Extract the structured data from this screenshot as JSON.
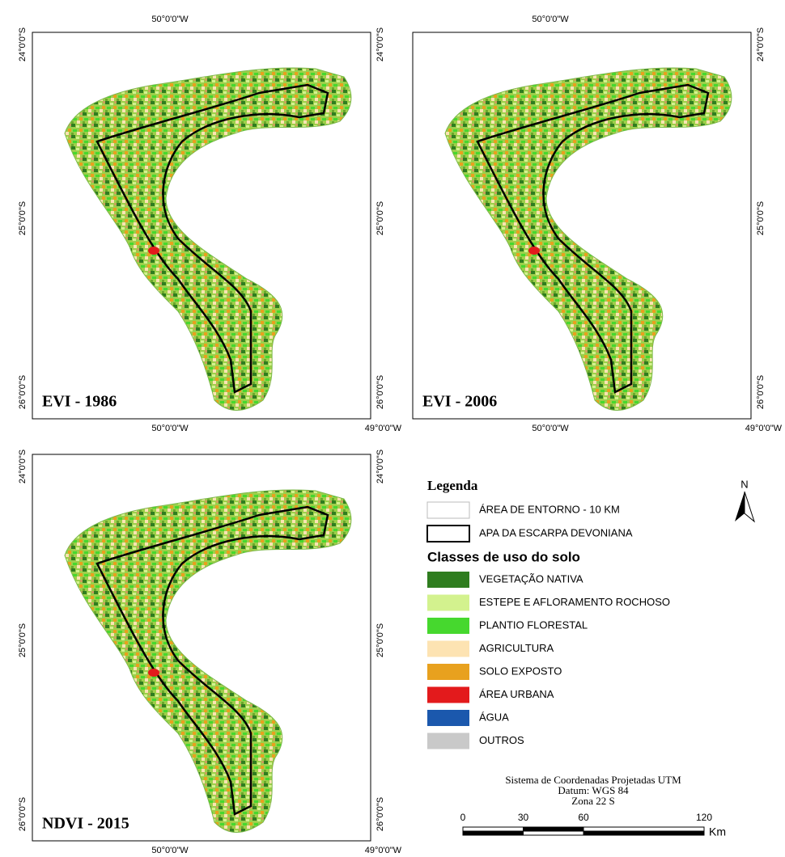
{
  "panels": [
    {
      "label": "EVI - 1986",
      "top_lon": [
        "50°0'0\"W"
      ],
      "bottom_lons": [
        "50°0'0\"W",
        "49°0'0\"W"
      ],
      "left_lats": [
        "24°0'0\"S",
        "25°0'0\"S",
        "26°0'0\"S"
      ],
      "right_lats": [
        "24°0'0\"S",
        "25°0'0\"S",
        "26°0'0\"S"
      ]
    },
    {
      "label": "EVI - 2006",
      "top_lon": [
        "50°0'0\"W"
      ],
      "bottom_lons": [
        "50°0'0\"W",
        "49°0'0\"W"
      ],
      "left_lats": [],
      "right_lats": [
        "24°0'0\"S",
        "25°0'0\"S",
        "26°0'0\"S"
      ]
    },
    {
      "label": "NDVI - 2015",
      "top_lon": [],
      "bottom_lons": [
        "50°0'0\"W",
        "49°0'0\"W"
      ],
      "left_lats": [
        "24°0'0\"S",
        "25°0'0\"S",
        "26°0'0\"S"
      ],
      "right_lats": [
        "24°0'0\"S",
        "25°0'0\"S",
        "26°0'0\"S"
      ]
    }
  ],
  "legend": {
    "title": "Legenda",
    "buffer": "ÁREA DE ENTORNO - 10 KM",
    "boundary": "APA DA ESCARPA DEVONIANA",
    "classes_title": "Classes de uso do solo",
    "classes": [
      {
        "label": "VEGETAÇÃO NATIVA",
        "color": "#2f7d1f"
      },
      {
        "label": "ESTEPE E AFLORAMENTO ROCHOSO",
        "color": "#d3f28e"
      },
      {
        "label": "PLANTIO FLORESTAL",
        "color": "#46d82e"
      },
      {
        "label": "AGRICULTURA",
        "color": "#fde3b2"
      },
      {
        "label": "SOLO EXPOSTO",
        "color": "#e8a11e"
      },
      {
        "label": "ÁREA URBANA",
        "color": "#e31a1c"
      },
      {
        "label": "ÁGUA",
        "color": "#1b58ad"
      },
      {
        "label": "OUTROS",
        "color": "#c9c9c9"
      }
    ]
  },
  "north": "N",
  "projection": [
    "Sistema de Coordenadas Projetadas UTM",
    "Datum: WGS 84",
    "Zona 22 S"
  ],
  "scale": {
    "ticks": [
      0,
      30,
      60,
      120
    ],
    "unit": "Km"
  }
}
